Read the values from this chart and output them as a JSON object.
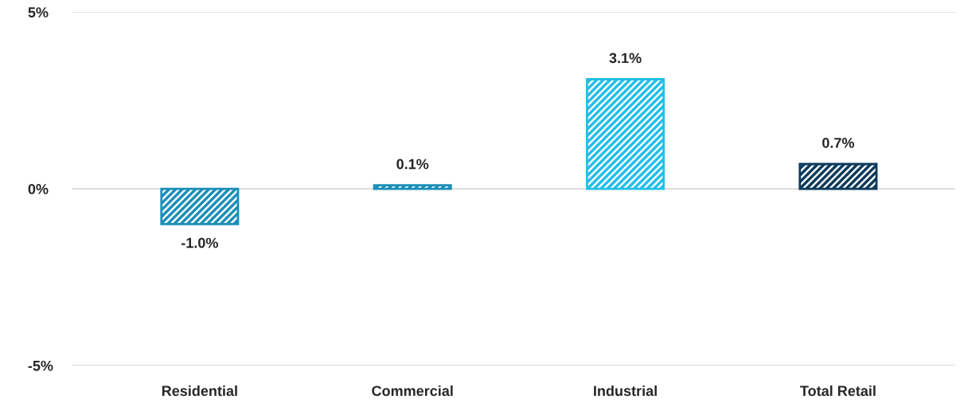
{
  "chart_data": {
    "type": "bar",
    "categories": [
      "Residential",
      "Commercial",
      "Industrial",
      "Total Retail"
    ],
    "values": [
      -1.0,
      0.1,
      3.1,
      0.7
    ],
    "colors": [
      "#1a8fb8",
      "#1a8fb8",
      "#22bfe8",
      "#0d3a5c"
    ],
    "ylim": [
      -5,
      5
    ],
    "yticks": [
      {
        "value": -5,
        "label": "-5%"
      },
      {
        "value": 0,
        "label": "0%"
      },
      {
        "value": 5,
        "label": "5%"
      }
    ],
    "value_labels": [
      "-1.0%",
      "0.1%",
      "3.1%",
      "0.7%"
    ],
    "grid": "y",
    "legend": false
  }
}
